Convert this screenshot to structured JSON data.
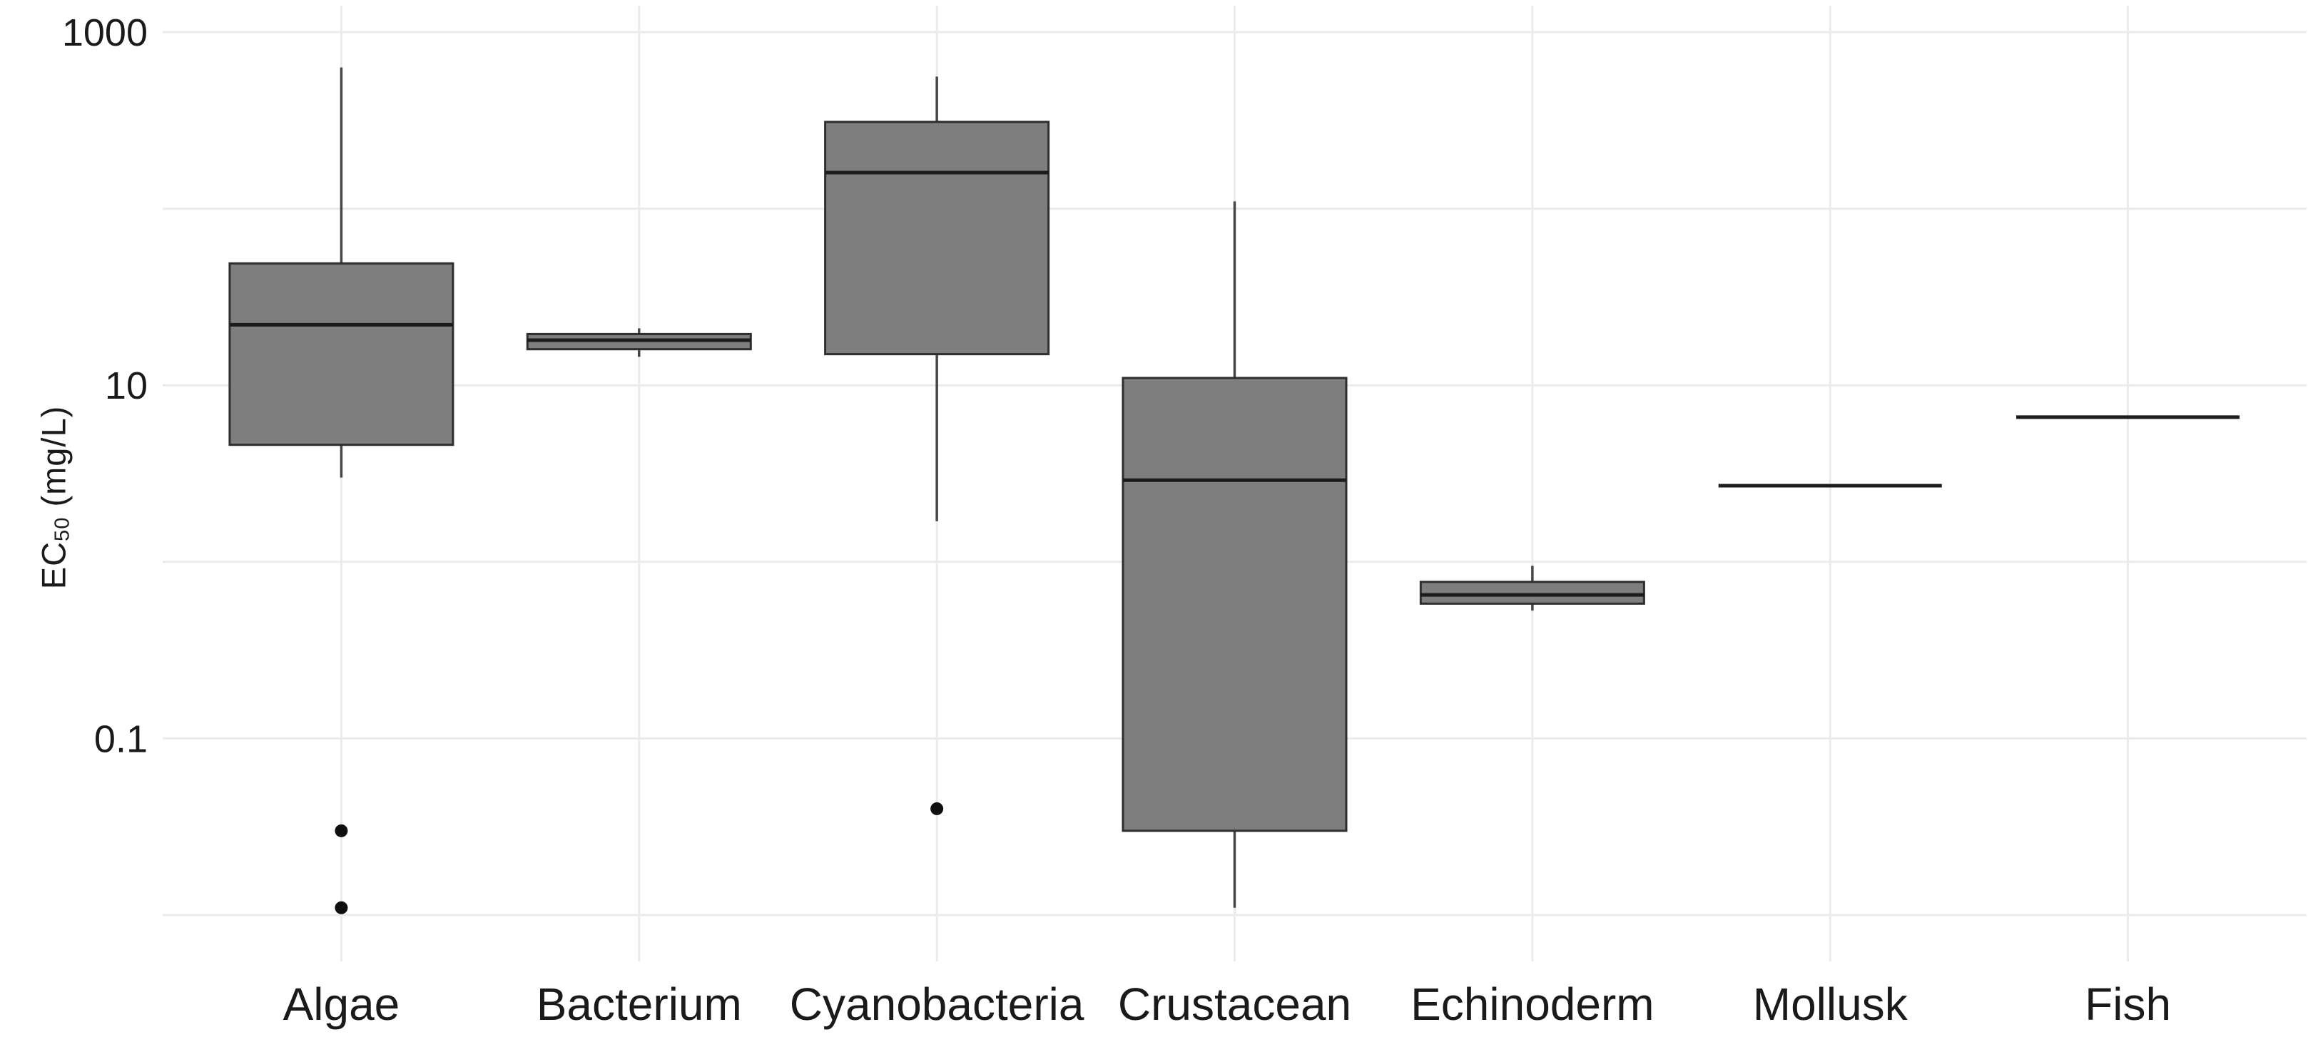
{
  "figure": {
    "background": "#ffffff"
  },
  "chart_data": {
    "type": "box",
    "title": "",
    "xlabel": "",
    "ylabel": "EC50 (mg/L)",
    "ylabel_parts": {
      "prefix": "EC",
      "subscript": "50",
      "suffix": " (mg/L)"
    },
    "y_scale": "log10",
    "y_axis": {
      "tick_labels": [
        {
          "value": 1000,
          "label": "1000"
        },
        {
          "value": 10,
          "label": "10"
        },
        {
          "value": 0.1,
          "label": "0.1"
        }
      ],
      "gridline_values": [
        1000,
        100,
        10,
        1,
        0.1,
        0.01
      ],
      "range_approx": [
        0.006,
        1400
      ],
      "grid": "on",
      "unit": "mg/L"
    },
    "categories": [
      "Algae",
      "Bacterium",
      "Cyanobacteria",
      "Crustacean",
      "Echinoderm",
      "Mollusk",
      "Fish"
    ],
    "series": [
      {
        "name": "Algae",
        "whisker_low": 3.0,
        "q1": 4.6,
        "median": 22,
        "q3": 49,
        "whisker_high": 630,
        "outliers": [
          0.03,
          0.011
        ]
      },
      {
        "name": "Bacterium",
        "whisker_low": 14.5,
        "q1": 16,
        "median": 18,
        "q3": 19.5,
        "whisker_high": 21,
        "outliers": []
      },
      {
        "name": "Cyanobacteria",
        "whisker_low": 1.7,
        "q1": 15,
        "median": 160,
        "q3": 310,
        "whisker_high": 560,
        "outliers": [
          0.04
        ]
      },
      {
        "name": "Crustacean",
        "whisker_low": 0.011,
        "q1": 0.03,
        "median": 2.9,
        "q3": 11,
        "whisker_high": 110,
        "outliers": []
      },
      {
        "name": "Echinoderm",
        "whisker_low": 0.53,
        "q1": 0.58,
        "median": 0.65,
        "q3": 0.77,
        "whisker_high": 0.95,
        "outliers": []
      },
      {
        "name": "Mollusk",
        "whisker_low": 2.7,
        "q1": 2.7,
        "median": 2.7,
        "q3": 2.7,
        "whisker_high": 2.7,
        "outliers": []
      },
      {
        "name": "Fish",
        "whisker_low": 6.6,
        "q1": 6.6,
        "median": 6.6,
        "q3": 6.6,
        "whisker_high": 6.6,
        "outliers": []
      }
    ],
    "style": {
      "box_fill": "#7e7e7e",
      "box_border": "#2e2e2e",
      "median_color": "#1c1c1c",
      "whisker_color": "#474747",
      "gridline_color": "#ebebeb",
      "outlier_color": "#0f0f0f",
      "text_color": "#1a1a1a",
      "background": "#ffffff"
    },
    "legend": "none"
  }
}
